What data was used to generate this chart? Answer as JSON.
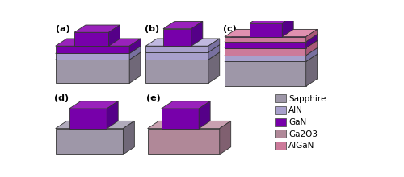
{
  "colors": {
    "sapphire_face": "#9e97a8",
    "sapphire_top": "#b0aabb",
    "sapphire_side": "#706878",
    "aln_face": "#a8a0cc",
    "aln_top": "#c0b8e0",
    "aln_side": "#7870a0",
    "gan_face": "#7700aa",
    "gan_top": "#9922bb",
    "gan_side": "#550088",
    "ga2o3_face": "#b08898",
    "ga2o3_top": "#c8a0b0",
    "ga2o3_side": "#806070",
    "algan_face": "#cc7a9a",
    "algan_top": "#e090b0",
    "algan_side": "#aa5878"
  },
  "legend_labels": [
    "Sapphire",
    "AlN",
    "GaN",
    "Ga2O3",
    "AlGaN"
  ],
  "legend_colors_face": [
    "#9e97a8",
    "#a8a0cc",
    "#7700aa",
    "#b08898",
    "#cc7a9a"
  ]
}
